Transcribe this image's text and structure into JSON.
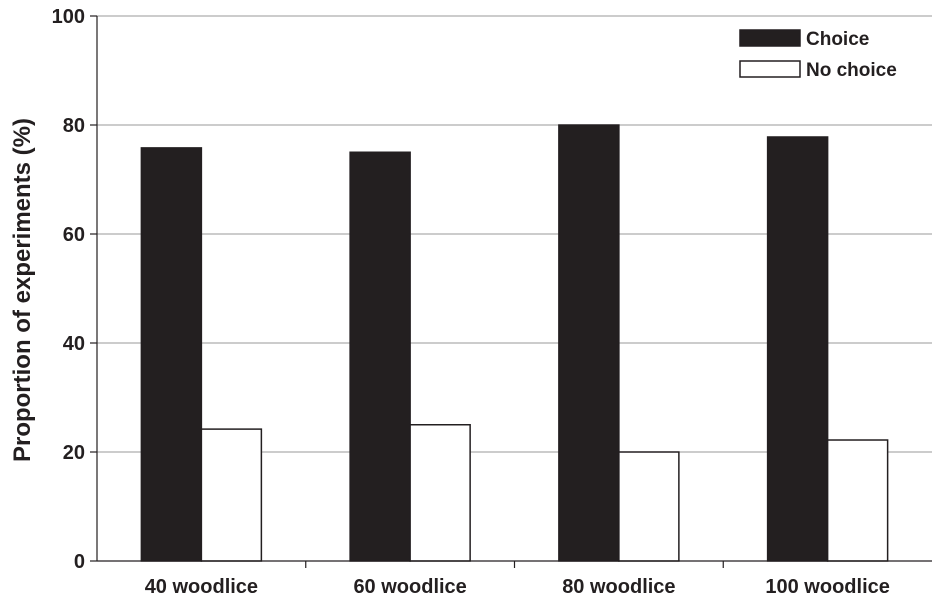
{
  "colors": {
    "choice": "#231f20",
    "no_choice": "#ffffff",
    "bar_stroke": "#231f20",
    "grid": "#9a9a9a"
  },
  "chart_data": {
    "type": "bar",
    "title": "",
    "xlabel": "",
    "ylabel": "Proportion of experiments (%)",
    "categories": [
      "40 woodlice",
      "60 woodlice",
      "80 woodlice",
      "100 woodlice"
    ],
    "series": [
      {
        "name": "Choice",
        "values": [
          75.8,
          75.0,
          80.0,
          77.8
        ]
      },
      {
        "name": "No choice",
        "values": [
          24.2,
          25.0,
          20.0,
          22.2
        ]
      }
    ],
    "ylim": [
      0,
      100
    ],
    "yticks": [
      0,
      20,
      40,
      60,
      80,
      100
    ],
    "grid": true,
    "legend_position": "top-right"
  }
}
